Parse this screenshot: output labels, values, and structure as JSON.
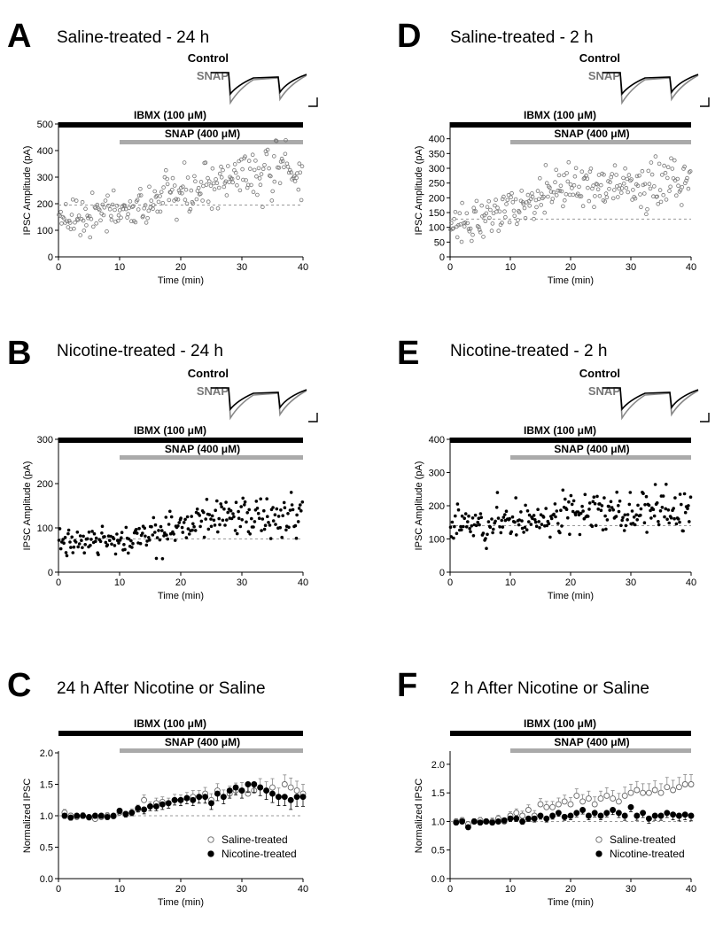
{
  "chart_data": [
    {
      "panel": "A",
      "title": "Saline-treated - 24 h",
      "type": "scatter",
      "marker": "open",
      "inset_traces": true,
      "trace_labels": [
        "Control",
        "SNAP"
      ],
      "bars": [
        "IBMX (100 μM)",
        "SNAP (400 μM)"
      ],
      "xlabel": "Time (min)",
      "ylabel": "IPSC Amplitude (pA)",
      "xlim": [
        0,
        40
      ],
      "ylim": [
        0,
        500
      ],
      "xticks": [
        0,
        10,
        20,
        30,
        40
      ],
      "yticks": [
        0,
        100,
        200,
        300,
        400,
        500
      ],
      "baseline": 195,
      "n_points": 240,
      "trend": {
        "start": 165,
        "ramp_from": 10,
        "plateau_at": 30,
        "end": 310
      },
      "noise": 45
    },
    {
      "panel": "B",
      "title": "Nicotine-treated - 24 h",
      "type": "scatter",
      "marker": "filled",
      "inset_traces": true,
      "trace_labels": [
        "Control",
        "SNAP"
      ],
      "bars": [
        "IBMX (100 μM)",
        "SNAP (400 μM)"
      ],
      "xlabel": "Time (min)",
      "ylabel": "IPSC Amplitude (pA)",
      "xlim": [
        0,
        40
      ],
      "ylim": [
        0,
        300
      ],
      "xticks": [
        0,
        10,
        20,
        30,
        40
      ],
      "yticks": [
        0,
        100,
        200,
        300
      ],
      "baseline": 75,
      "n_points": 240,
      "trend": {
        "start": 72,
        "ramp_from": 10,
        "plateau_at": 27,
        "end": 128
      },
      "noise": 20
    },
    {
      "panel": "C",
      "title": "24 h After Nicotine or Saline",
      "type": "line",
      "inset_traces": false,
      "bars": [
        "IBMX (100 μM)",
        "SNAP (400 μM)"
      ],
      "xlabel": "Time (min)",
      "ylabel": "Normalized IPSC",
      "xlim": [
        0,
        40
      ],
      "ylim": [
        0,
        2.0
      ],
      "xticks": [
        0,
        10,
        20,
        30,
        40
      ],
      "yticks": [
        0.0,
        0.5,
        1.0,
        1.5,
        2.0
      ],
      "baseline": 1.0,
      "legend_position": "bottom-right",
      "x": [
        1,
        2,
        3,
        4,
        5,
        6,
        7,
        8,
        9,
        10,
        11,
        12,
        13,
        14,
        15,
        16,
        17,
        18,
        19,
        20,
        21,
        22,
        23,
        24,
        25,
        26,
        27,
        28,
        29,
        30,
        31,
        32,
        33,
        34,
        35,
        36,
        37,
        38,
        39,
        40
      ],
      "series": [
        {
          "name": "Saline-treated",
          "marker": "open",
          "values": [
            1.05,
            1.0,
            0.98,
            1.0,
            0.97,
            0.95,
            0.98,
            1.0,
            0.99,
            1.05,
            1.02,
            1.05,
            1.1,
            1.25,
            1.15,
            1.2,
            1.22,
            1.2,
            1.25,
            1.25,
            1.28,
            1.3,
            1.3,
            1.35,
            1.25,
            1.4,
            1.3,
            1.35,
            1.4,
            1.4,
            1.35,
            1.4,
            1.45,
            1.4,
            1.45,
            1.3,
            1.5,
            1.45,
            1.4,
            1.35
          ],
          "errors": [
            0.05,
            0.04,
            0.04,
            0.05,
            0.04,
            0.04,
            0.04,
            0.05,
            0.04,
            0.06,
            0.05,
            0.06,
            0.07,
            0.08,
            0.07,
            0.08,
            0.08,
            0.08,
            0.09,
            0.08,
            0.09,
            0.1,
            0.1,
            0.1,
            0.1,
            0.11,
            0.11,
            0.12,
            0.12,
            0.13,
            0.13,
            0.13,
            0.14,
            0.14,
            0.14,
            0.14,
            0.15,
            0.15,
            0.15,
            0.15
          ]
        },
        {
          "name": "Nicotine-treated",
          "marker": "filled",
          "values": [
            1.0,
            0.97,
            1.0,
            1.0,
            0.98,
            1.0,
            1.0,
            0.98,
            1.0,
            1.08,
            1.03,
            1.05,
            1.12,
            1.1,
            1.15,
            1.15,
            1.18,
            1.2,
            1.25,
            1.25,
            1.28,
            1.25,
            1.3,
            1.3,
            1.2,
            1.35,
            1.3,
            1.4,
            1.45,
            1.4,
            1.5,
            1.5,
            1.45,
            1.4,
            1.35,
            1.3,
            1.3,
            1.25,
            1.3,
            1.3
          ],
          "errors": [
            0.04,
            0.04,
            0.04,
            0.04,
            0.04,
            0.04,
            0.04,
            0.04,
            0.04,
            0.05,
            0.05,
            0.05,
            0.06,
            0.07,
            0.07,
            0.07,
            0.08,
            0.08,
            0.08,
            0.09,
            0.09,
            0.09,
            0.1,
            0.1,
            0.1,
            0.11,
            0.11,
            0.12,
            0.12,
            0.12,
            0.13,
            0.13,
            0.13,
            0.14,
            0.14,
            0.14,
            0.14,
            0.15,
            0.15,
            0.15
          ]
        }
      ]
    },
    {
      "panel": "D",
      "title": "Saline-treated - 2 h",
      "type": "scatter",
      "marker": "open",
      "inset_traces": true,
      "trace_labels": [
        "Control",
        "SNAP"
      ],
      "bars": [
        "IBMX (100 μM)",
        "SNAP (400 μM)"
      ],
      "xlabel": "Time (min)",
      "ylabel": "IPSC Amplitude (pA)",
      "xlim": [
        0,
        40
      ],
      "ylim": [
        0,
        450
      ],
      "xticks": [
        0,
        10,
        20,
        30,
        40
      ],
      "yticks": [
        0,
        50,
        100,
        150,
        200,
        250,
        300,
        350,
        400
      ],
      "baseline": 128,
      "n_points": 240,
      "trend": {
        "start": 95,
        "ramp_from": 0,
        "plateau_at": 20,
        "end": 245
      },
      "noise": 40
    },
    {
      "panel": "E",
      "title": "Nicotine-treated - 2 h",
      "type": "scatter",
      "marker": "filled",
      "inset_traces": true,
      "trace_labels": [
        "Control",
        "SNAP"
      ],
      "bars": [
        "IBMX (100 μM)",
        "SNAP (400 μM)"
      ],
      "xlabel": "Time (min)",
      "ylabel": "IPSC Amplitude (pA)",
      "xlim": [
        0,
        40
      ],
      "ylim": [
        0,
        400
      ],
      "xticks": [
        0,
        10,
        20,
        30,
        40
      ],
      "yticks": [
        0,
        100,
        200,
        300,
        400
      ],
      "baseline": 140,
      "n_points": 240,
      "trend": {
        "start": 145,
        "ramp_from": 10,
        "plateau_at": 25,
        "end": 180
      },
      "noise": 28
    },
    {
      "panel": "F",
      "title": "2 h After Nicotine or Saline",
      "type": "line",
      "inset_traces": false,
      "bars": [
        "IBMX (100 μM)",
        "SNAP (400 μM)"
      ],
      "xlabel": "Time (min)",
      "ylabel": "Normalized IPSC",
      "xlim": [
        0,
        40
      ],
      "ylim": [
        0,
        2.2
      ],
      "xticks": [
        0,
        10,
        20,
        30,
        40
      ],
      "yticks": [
        0.0,
        0.5,
        1.0,
        1.5,
        2.0
      ],
      "baseline": 1.0,
      "legend_position": "bottom-right",
      "x": [
        1,
        2,
        3,
        4,
        5,
        6,
        7,
        8,
        9,
        10,
        11,
        12,
        13,
        14,
        15,
        16,
        17,
        18,
        19,
        20,
        21,
        22,
        23,
        24,
        25,
        26,
        27,
        28,
        29,
        30,
        31,
        32,
        33,
        34,
        35,
        36,
        37,
        38,
        39,
        40
      ],
      "series": [
        {
          "name": "Saline-treated",
          "marker": "open",
          "values": [
            1.0,
            1.02,
            0.95,
            1.0,
            1.02,
            1.0,
            1.0,
            1.05,
            1.0,
            1.1,
            1.15,
            1.1,
            1.2,
            1.1,
            1.3,
            1.25,
            1.25,
            1.3,
            1.35,
            1.3,
            1.45,
            1.35,
            1.4,
            1.3,
            1.4,
            1.45,
            1.4,
            1.35,
            1.45,
            1.5,
            1.55,
            1.5,
            1.5,
            1.55,
            1.5,
            1.6,
            1.55,
            1.6,
            1.65,
            1.65
          ],
          "errors": [
            0.05,
            0.05,
            0.05,
            0.05,
            0.05,
            0.05,
            0.06,
            0.06,
            0.06,
            0.07,
            0.07,
            0.08,
            0.09,
            0.09,
            0.1,
            0.1,
            0.1,
            0.11,
            0.11,
            0.12,
            0.12,
            0.12,
            0.13,
            0.13,
            0.13,
            0.14,
            0.14,
            0.14,
            0.15,
            0.15,
            0.15,
            0.16,
            0.16,
            0.16,
            0.16,
            0.17,
            0.17,
            0.17,
            0.17,
            0.17
          ]
        },
        {
          "name": "Nicotine-treated",
          "marker": "filled",
          "values": [
            0.98,
            1.0,
            0.9,
            1.0,
            0.98,
            1.0,
            0.98,
            1.0,
            1.02,
            1.05,
            1.05,
            1.0,
            1.05,
            1.05,
            1.1,
            1.05,
            1.1,
            1.15,
            1.08,
            1.1,
            1.15,
            1.2,
            1.1,
            1.15,
            1.1,
            1.15,
            1.2,
            1.15,
            1.1,
            1.25,
            1.1,
            1.15,
            1.05,
            1.1,
            1.1,
            1.15,
            1.12,
            1.1,
            1.12,
            1.1
          ],
          "errors": [
            0.04,
            0.04,
            0.04,
            0.04,
            0.04,
            0.04,
            0.04,
            0.04,
            0.05,
            0.05,
            0.05,
            0.05,
            0.05,
            0.06,
            0.06,
            0.06,
            0.06,
            0.06,
            0.06,
            0.07,
            0.07,
            0.07,
            0.07,
            0.07,
            0.07,
            0.07,
            0.08,
            0.08,
            0.08,
            0.08,
            0.08,
            0.08,
            0.08,
            0.08,
            0.08,
            0.08,
            0.09,
            0.09,
            0.09,
            0.09
          ]
        }
      ]
    }
  ]
}
